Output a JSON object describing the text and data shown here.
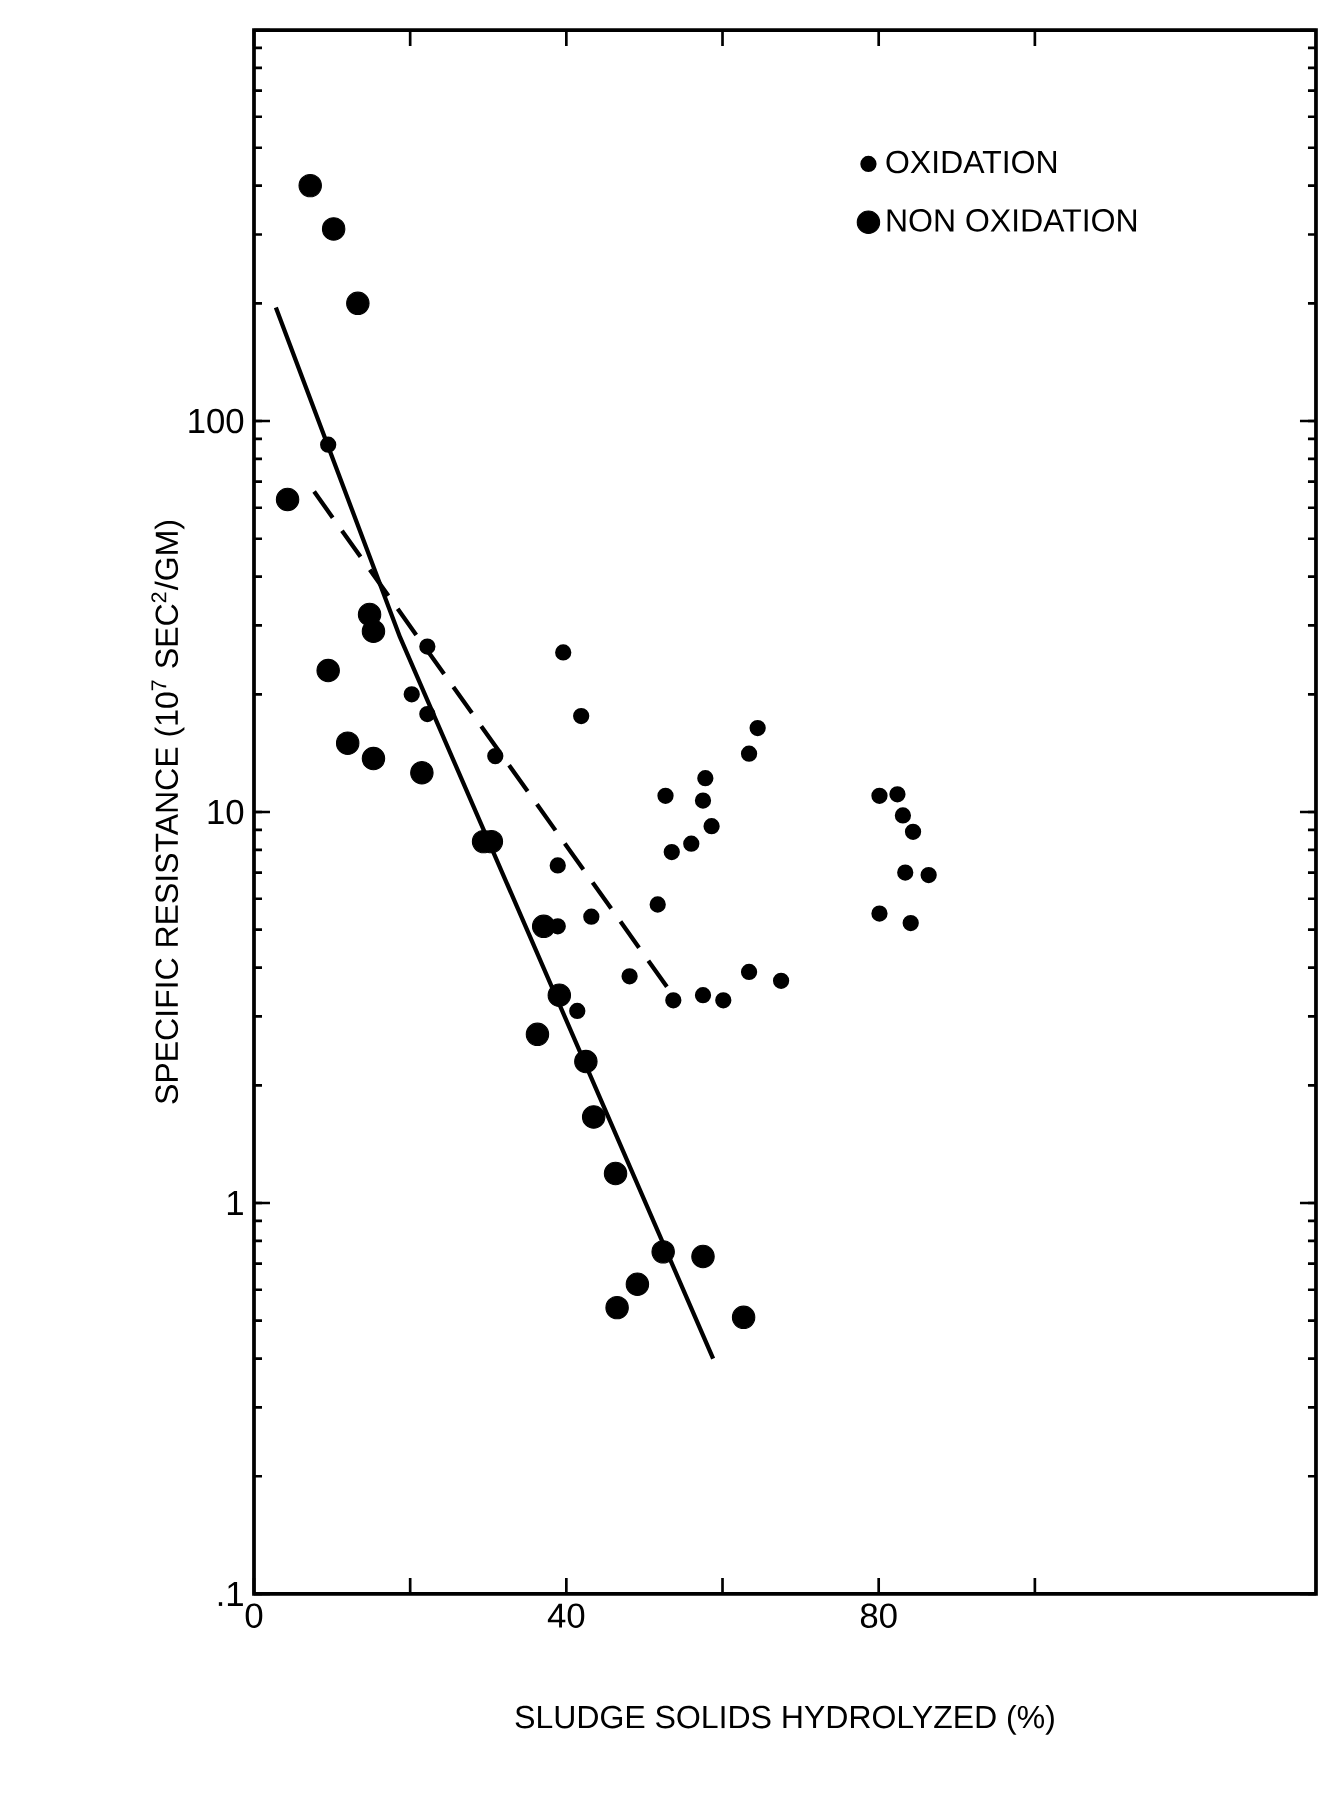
{
  "chart_data": {
    "type": "scatter",
    "xlabel": "SLUDGE SOLIDS HYDROLYZED (%)",
    "ylabel": "SPECIFIC RESISTANCE (10$^{7}$ SEC$^{2}$/GM)",
    "log": "y",
    "xlim": [
      0,
      136
    ],
    "xticks": [
      0,
      {
        "value": 20,
        "label": null
      },
      40,
      {
        "value": 60,
        "label": null
      },
      80,
      {
        "value": 100,
        "label": null
      }
    ],
    "ylim": [
      0.1,
      1000
    ],
    "yticks": [
      {
        "value": 0.1,
        "label": ".1"
      },
      1,
      10,
      100,
      {
        "value": 1000,
        "label": null
      }
    ],
    "grid": false,
    "legend": "top right",
    "series": [
      {
        "name": "OXIDATION",
        "type": "scatter",
        "marker": "circle",
        "color": "#000000",
        "x": [
          9.5,
          22.2,
          39.6,
          41.9,
          20.2,
          22.2,
          30.9,
          64.5,
          63.4,
          57.8,
          57.5,
          52.7,
          58.6,
          56,
          53.5,
          38.9,
          51.7,
          43.2,
          38.9,
          48.1,
          41.4,
          53.7,
          57.5,
          60.1,
          63.4,
          67.5,
          80.1,
          82.4,
          83.1,
          84.4,
          83.4,
          86.4,
          80.1,
          84.1
        ],
        "values": [
          87,
          26.5,
          25.6,
          17.6,
          20,
          17.8,
          13.9,
          16.4,
          14.1,
          12.2,
          10.7,
          11.0,
          9.2,
          8.3,
          7.9,
          7.3,
          5.8,
          5.4,
          5.1,
          3.8,
          3.1,
          3.3,
          3.4,
          3.3,
          3.9,
          3.7,
          11.0,
          11.1,
          9.8,
          8.9,
          7.0,
          6.9,
          5.5,
          5.2
        ]
      },
      {
        "name": "NON OXIDATION",
        "type": "scatter",
        "color": "#000000",
        "x": [
          7.2,
          10.2,
          13.3,
          4.3,
          9.5,
          14.8,
          15.3,
          12,
          15.3,
          21.5,
          29.4,
          30.4,
          37.1,
          39.1,
          36.3,
          42.5,
          43.5,
          46.3,
          52.4,
          57.5,
          49.1,
          46.5,
          62.7
        ],
        "values": [
          400,
          310,
          200,
          63,
          23,
          32,
          29,
          15,
          13.7,
          12.6,
          8.4,
          8.4,
          5.1,
          3.4,
          2.7,
          2.3,
          1.66,
          1.19,
          0.75,
          0.73,
          0.62,
          0.54,
          0.51
        ]
      },
      {
        "type": "line",
        "marker": "none",
        "line_style": "solid",
        "color": "#000000",
        "x": [
          2.8,
          18.7,
          58.8
        ],
        "values": [
          195,
          28,
          0.4
        ]
      },
      {
        "type": "line",
        "marker": "none",
        "line_style": "dashed",
        "color": "#000000",
        "x": [
          7.7,
          53.2
        ],
        "values": [
          66,
          3.5
        ]
      }
    ]
  }
}
